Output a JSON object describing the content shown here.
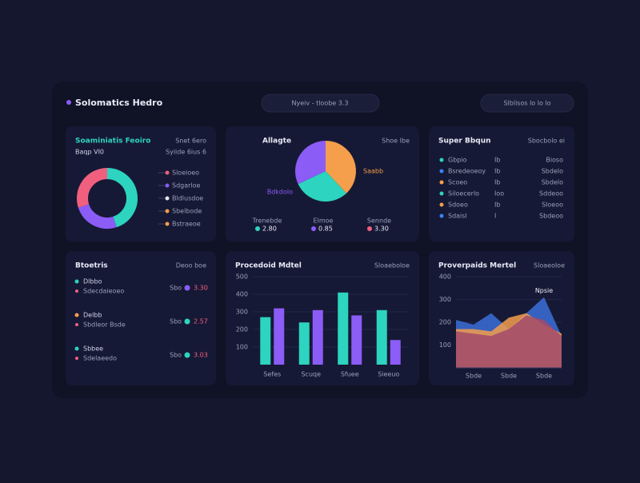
{
  "header": {
    "title": "Solomatics Hedro",
    "search": "Nyeiv - tloobe 3.3",
    "actions": "Slblisos lo lo lo"
  },
  "panels": [
    {
      "type": "donut",
      "title": "Soaminiatis Feoiro",
      "subtitle": "Baqp VI0",
      "meta": "Snet 6ero",
      "meta2": "Syiide  6ius 6",
      "values": [
        45,
        25,
        30
      ],
      "colors": [
        "#2dd4bf",
        "#8b5cf6",
        "#f0607e"
      ],
      "legend": [
        {
          "label": "Sloeioeo",
          "color": "#f0607e"
        },
        {
          "label": "Sdgarloe",
          "color": "#8b5cf6"
        },
        {
          "label": "Bldlusdoe",
          "color": "#e5e7eb"
        },
        {
          "label": "Sbelbode",
          "color": "#f59e4b"
        },
        {
          "label": "Bstraeoe",
          "color": "#f59e4b"
        }
      ]
    },
    {
      "type": "pie",
      "title": "Allagte",
      "meta": "Shoe Ibe",
      "values": [
        38,
        30,
        32
      ],
      "colors": [
        "#f59e4b",
        "#2dd4bf",
        "#8b5cf6"
      ],
      "annotations": [
        {
          "text": "Saabb",
          "color": "#f59e4b"
        },
        {
          "text": "Bdkdolo",
          "color": "#8b5cf6"
        }
      ],
      "stats": [
        {
          "label": "Trenebde",
          "value": "2.80",
          "color": "#2dd4bf"
        },
        {
          "label": "Elmoe",
          "value": "0.85",
          "color": "#8b5cf6"
        },
        {
          "label": "Sennde",
          "value": "3.30",
          "color": "#f0607e"
        }
      ]
    },
    {
      "type": "list",
      "title": "Super Bbqun",
      "meta": "Sbocbolo ei",
      "rows": [
        {
          "label": "Gbpio",
          "mid": "Ib",
          "right": "Bioso",
          "color": "#2dd4bf"
        },
        {
          "label": "Bsredeoeoy",
          "mid": "Ib",
          "right": "Sbdelo",
          "color": "#3b82f6"
        },
        {
          "label": "Scoeo",
          "mid": "Ib",
          "right": "Sbdelo",
          "color": "#f59e4b"
        },
        {
          "label": "Siloecerlo",
          "mid": "Ioo",
          "right": "Sddeoo",
          "color": "#2dd4bf"
        },
        {
          "label": "Sdoeo",
          "mid": "Ib",
          "right": "Sloeoo",
          "color": "#f59e4b"
        },
        {
          "label": "Sdaisl",
          "mid": "I",
          "right": "Sbdeoo",
          "color": "#3b82f6"
        }
      ]
    },
    {
      "type": "metrics",
      "title": "Btoetris",
      "meta": "Deoo boe",
      "items": [
        {
          "label": "Dlbbo",
          "sub": "Sdecdaieoeo",
          "tag": "Sbo",
          "value": "3.30",
          "color": "#2dd4bf",
          "value_color": "#8b5cf6"
        },
        {
          "label": "Delbb",
          "sub": "Sbdleor Bsde",
          "tag": "Sbo",
          "value": "2.57",
          "color": "#f59e4b",
          "value_color": "#2dd4bf"
        },
        {
          "label": "Sbbee",
          "sub": "Sdelaeedo",
          "tag": "Sbo",
          "value": "3.03",
          "color": "#2dd4bf",
          "value_color": "#2dd4bf"
        }
      ]
    },
    {
      "type": "bar",
      "title": "Procedoid Mdtel",
      "meta": "Sloaeboloe",
      "categories": [
        "Sefes",
        "Scuqe",
        "Sfuee",
        "Sieeuo"
      ],
      "series": [
        {
          "color": "#2dd4bf",
          "values": [
            270,
            240,
            410,
            310
          ]
        },
        {
          "color": "#8b5cf6",
          "values": [
            320,
            310,
            280,
            140
          ]
        }
      ],
      "ylim": [
        0,
        500
      ],
      "yticks": [
        100,
        200,
        300,
        400,
        500
      ],
      "grid": true
    },
    {
      "type": "area",
      "title": "Proverpaids Mertel",
      "meta": "Sloaeoloe",
      "annotation": "Npsie",
      "categories": [
        null,
        "Sbde",
        null,
        "Sbde",
        null,
        "Sbde",
        null
      ],
      "series": [
        {
          "color": "#3b6fd8",
          "values": [
            210,
            190,
            240,
            170,
            240,
            310,
            140
          ]
        },
        {
          "color": "#f59e4b",
          "values": [
            170,
            170,
            160,
            220,
            240,
            190,
            150
          ]
        },
        {
          "color": "#a24a6a",
          "values": [
            160,
            150,
            140,
            170,
            230,
            210,
            140
          ]
        }
      ],
      "ylim": [
        0,
        400
      ],
      "yticks": [
        100,
        200,
        300,
        400
      ],
      "grid": true
    }
  ]
}
